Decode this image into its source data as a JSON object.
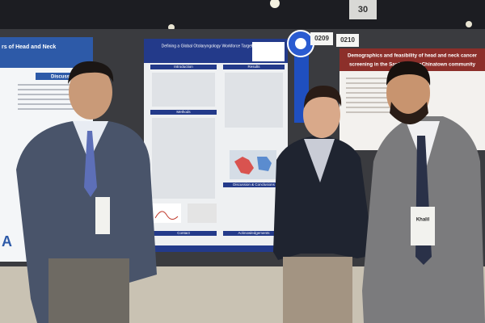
{
  "sign": "30",
  "booth_numbers": [
    "0209",
    "0210"
  ],
  "left_poster": {
    "title": "rs of Head and Neck",
    "section": "Discussion"
  },
  "center_poster": {
    "title": "Defining a Global Otolaryngology Workforce Target",
    "sections": [
      "Introduction",
      "Results",
      "Methods",
      "Discussion & Conclusions",
      "Contact",
      "Acknowledgements"
    ]
  },
  "right_poster": {
    "title_lines": [
      "Demographics and feasibility of head and neck cancer",
      "screening in the SanFranciscoChinatown community"
    ]
  },
  "badge": "Khalil"
}
